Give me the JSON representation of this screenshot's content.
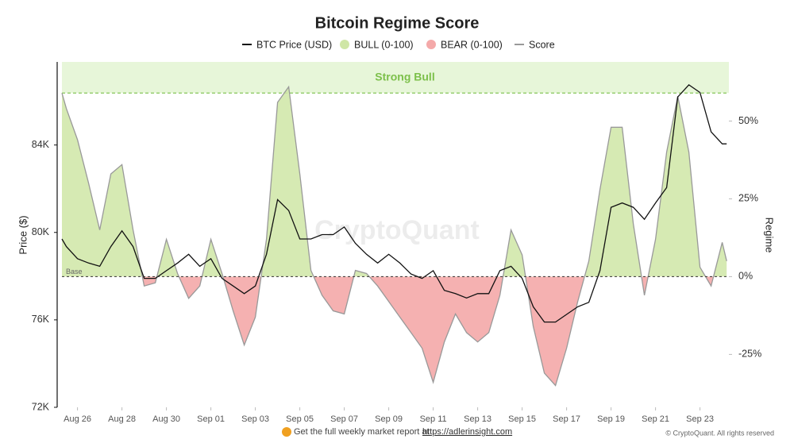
{
  "chart_data": {
    "type": "line",
    "title": "Bitcoin Regime Score",
    "y_label": "Price ($)",
    "y2_label": "Regime",
    "watermark": "CryptoQuant",
    "x": [
      -0.7,
      -0.5,
      0,
      0.5,
      1,
      1.5,
      2,
      2.5,
      3,
      3.5,
      4,
      4.5,
      5,
      5.5,
      6,
      6.5,
      7,
      7.5,
      8,
      8.5,
      9,
      9.5,
      10,
      10.5,
      11,
      11.5,
      12,
      12.5,
      13,
      13.5,
      14,
      14.5,
      15,
      15.5,
      16,
      16.5,
      17,
      17.5,
      18,
      18.5,
      19,
      19.5,
      20,
      20.5,
      21,
      21.5,
      22,
      22.5,
      23,
      23.5,
      24,
      24.5,
      25,
      25.5,
      26,
      26.5,
      27,
      27.5,
      28,
      28.5,
      29,
      29.2
    ],
    "xlim": [
      -0.7,
      29.3
    ],
    "xticks": [
      {
        "value": 0,
        "label": "Aug 26"
      },
      {
        "value": 2,
        "label": "Aug 28"
      },
      {
        "value": 4,
        "label": "Aug 30"
      },
      {
        "value": 6,
        "label": "Sep 01"
      },
      {
        "value": 8,
        "label": "Sep 03"
      },
      {
        "value": 10,
        "label": "Sep 05"
      },
      {
        "value": 12,
        "label": "Sep 07"
      },
      {
        "value": 14,
        "label": "Sep 09"
      },
      {
        "value": 16,
        "label": "Sep 11"
      },
      {
        "value": 18,
        "label": "Sep 13"
      },
      {
        "value": 20,
        "label": "Sep 15"
      },
      {
        "value": 22,
        "label": "Sep 17"
      },
      {
        "value": 24,
        "label": "Sep 19"
      },
      {
        "value": 26,
        "label": "Sep 21"
      },
      {
        "value": 28,
        "label": "Sep 23"
      }
    ],
    "ylim": [
      72000,
      87800
    ],
    "yticks": [
      {
        "value": 72000,
        "label": "72K"
      },
      {
        "value": 76000,
        "label": "76K"
      },
      {
        "value": 80000,
        "label": "80K"
      },
      {
        "value": 84000,
        "label": "84K"
      }
    ],
    "y2lim": [
      -42,
      69
    ],
    "y2ticks": [
      {
        "value": -25,
        "label": "-25%"
      },
      {
        "value": 0,
        "label": "0%"
      },
      {
        "value": 25,
        "label": "25%"
      },
      {
        "value": 50,
        "label": "50%"
      }
    ],
    "series": [
      {
        "name": "BTC Price (USD)",
        "color": "#111111",
        "values": [
          79700,
          79350,
          78800,
          78600,
          78450,
          79350,
          80070,
          79350,
          77900,
          77900,
          78250,
          78600,
          79000,
          78450,
          78800,
          77900,
          77550,
          77200,
          77550,
          79000,
          81500,
          81000,
          79700,
          79700,
          79900,
          79900,
          80250,
          79500,
          79000,
          78600,
          79000,
          78600,
          78100,
          77900,
          78250,
          77350,
          77200,
          77000,
          77200,
          77200,
          78250,
          78450,
          77900,
          76600,
          75900,
          75900,
          76250,
          76600,
          76800,
          78250,
          81150,
          81350,
          81150,
          80600,
          81350,
          82050,
          86200,
          86750,
          86400,
          84600,
          84050,
          84050
        ]
      },
      {
        "name": "Score",
        "color": "#999999",
        "axis": "y2",
        "values": [
          59,
          54,
          44,
          30,
          15,
          33,
          36,
          15,
          -3,
          -2,
          12,
          1,
          -7,
          -3,
          12,
          1,
          -11,
          -22,
          -13,
          12,
          56,
          61,
          33,
          2,
          -6,
          -11,
          -12,
          2,
          1,
          -3,
          -8,
          -13,
          -18,
          -23,
          -34,
          -21,
          -12,
          -18,
          -21,
          -18,
          -6,
          15,
          7,
          -16,
          -31,
          -35,
          -23,
          -8,
          5,
          28,
          48,
          48,
          17,
          -6,
          12,
          40,
          58,
          40,
          3,
          -3,
          11,
          5
        ]
      }
    ],
    "bull_fill": {
      "name": "BULL (0-100)",
      "color": "#cfe6a6"
    },
    "bear_fill": {
      "name": "BEAR (0-100)",
      "color": "#f4a9a9"
    },
    "strong_bull": {
      "label": "Strong Bull",
      "value": 59,
      "color": "#7cc04a"
    },
    "base": {
      "label": "Base",
      "value": 0
    },
    "footer": {
      "text": "Get the full weekly market report at",
      "link": "https://adlerinsight.com",
      "copyright": "© CryptoQuant. All rights reserved"
    }
  }
}
